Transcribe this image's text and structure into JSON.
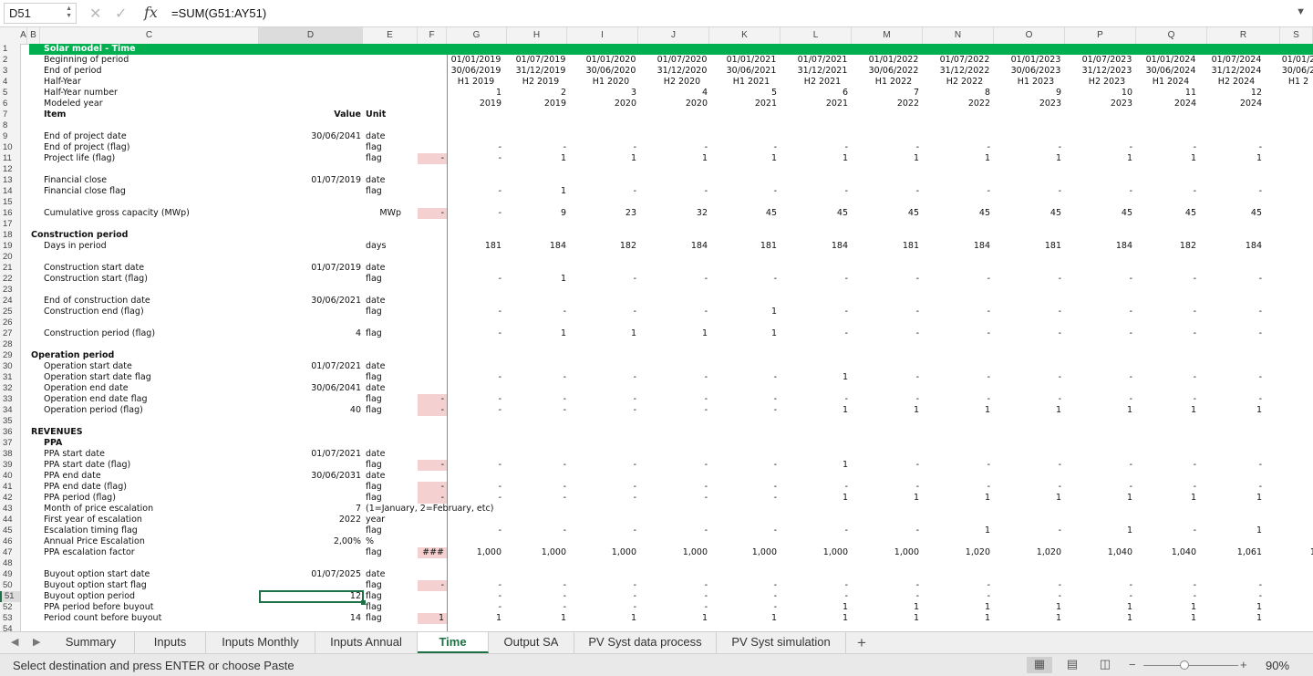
{
  "formula_bar": {
    "cell_ref": "D51",
    "formula": "=SUM(G51:AY51)",
    "fx_label": "fx",
    "cancel_icon": "close-icon",
    "accept_icon": "check-icon"
  },
  "columns": [
    {
      "letter": "A"
    },
    {
      "letter": "B"
    },
    {
      "letter": "C"
    },
    {
      "letter": "D"
    },
    {
      "letter": "E"
    },
    {
      "letter": "F"
    },
    {
      "letter": "G"
    },
    {
      "letter": "H"
    },
    {
      "letter": "I"
    },
    {
      "letter": "J"
    },
    {
      "letter": "K"
    },
    {
      "letter": "L"
    },
    {
      "letter": "M"
    },
    {
      "letter": "N"
    },
    {
      "letter": "O"
    },
    {
      "letter": "P"
    },
    {
      "letter": "Q"
    },
    {
      "letter": "R"
    },
    {
      "letter": "S"
    }
  ],
  "selected_column": "D",
  "selected_row": "51",
  "rows": [
    {
      "n": "1",
      "title": "Solar model - Time",
      "highlight_color": "#00b050"
    },
    {
      "n": "2",
      "label": "Beginning of period",
      "vals": [
        "01/01/2019",
        "01/07/2019",
        "01/01/2020",
        "01/07/2020",
        "01/01/2021",
        "01/07/2021",
        "01/01/2022",
        "01/07/2022",
        "01/01/2023",
        "01/07/2023",
        "01/01/2024",
        "01/07/2024",
        "01/01/2"
      ]
    },
    {
      "n": "3",
      "label": "End of period",
      "vals": [
        "30/06/2019",
        "31/12/2019",
        "30/06/2020",
        "31/12/2020",
        "30/06/2021",
        "31/12/2021",
        "30/06/2022",
        "31/12/2022",
        "30/06/2023",
        "31/12/2023",
        "30/06/2024",
        "31/12/2024",
        "30/06/2"
      ]
    },
    {
      "n": "4",
      "label": "Half-Year",
      "vals": [
        "H1 2019",
        "H2 2019",
        "H1 2020",
        "H2 2020",
        "H1 2021",
        "H2 2021",
        "H1 2022",
        "H2 2022",
        "H1 2023",
        "H2 2023",
        "H1 2024",
        "H2 2024",
        "H1 2"
      ]
    },
    {
      "n": "5",
      "label": "Half-Year number",
      "vals": [
        "1",
        "2",
        "3",
        "4",
        "5",
        "6",
        "7",
        "8",
        "9",
        "10",
        "11",
        "12",
        ""
      ]
    },
    {
      "n": "6",
      "label": "Modeled year",
      "vals": [
        "2019",
        "2019",
        "2020",
        "2020",
        "2021",
        "2021",
        "2022",
        "2022",
        "2023",
        "2023",
        "2024",
        "2024",
        "2"
      ]
    },
    {
      "n": "7",
      "label": "Item",
      "bold": true,
      "value": "Value",
      "unit": "Unit",
      "value_bold": true
    },
    {
      "n": "8"
    },
    {
      "n": "9",
      "label": "End of project date",
      "value": "30/06/2041",
      "unit": "date"
    },
    {
      "n": "10",
      "label": "End of project (flag)",
      "unit": "flag",
      "vals": [
        "-",
        "-",
        "-",
        "-",
        "-",
        "-",
        "-",
        "-",
        "-",
        "-",
        "-",
        "-",
        ""
      ]
    },
    {
      "n": "11",
      "label": "Project life (flag)",
      "unit": "flag",
      "check": "-",
      "vals": [
        "-",
        "1",
        "1",
        "1",
        "1",
        "1",
        "1",
        "1",
        "1",
        "1",
        "1",
        "1",
        ""
      ]
    },
    {
      "n": "12"
    },
    {
      "n": "13",
      "label": "Financial close",
      "value": "01/07/2019",
      "unit": "date"
    },
    {
      "n": "14",
      "label": "Financial close flag",
      "unit": "flag",
      "vals": [
        "-",
        "1",
        "-",
        "-",
        "-",
        "-",
        "-",
        "-",
        "-",
        "-",
        "-",
        "-",
        ""
      ]
    },
    {
      "n": "15"
    },
    {
      "n": "16",
      "label": "Cumulative gross capacity (MWp)",
      "unit_e": "MWp",
      "check": "-",
      "vals": [
        "-",
        "9",
        "23",
        "32",
        "45",
        "45",
        "45",
        "45",
        "45",
        "45",
        "45",
        "45",
        ""
      ]
    },
    {
      "n": "17"
    },
    {
      "n": "18",
      "section": "Construction period"
    },
    {
      "n": "19",
      "label": "Days in period",
      "unit": "days",
      "vals": [
        "181",
        "184",
        "182",
        "184",
        "181",
        "184",
        "181",
        "184",
        "181",
        "184",
        "182",
        "184",
        ""
      ]
    },
    {
      "n": "20"
    },
    {
      "n": "21",
      "label": "Construction start date",
      "value": "01/07/2019",
      "unit": "date"
    },
    {
      "n": "22",
      "label": "Construction start (flag)",
      "unit": "flag",
      "vals": [
        "-",
        "1",
        "-",
        "-",
        "-",
        "-",
        "-",
        "-",
        "-",
        "-",
        "-",
        "-",
        ""
      ]
    },
    {
      "n": "23"
    },
    {
      "n": "24",
      "label": "End of construction date",
      "value": "30/06/2021",
      "unit": "date"
    },
    {
      "n": "25",
      "label": "Construction end (flag)",
      "unit": "flag",
      "vals": [
        "-",
        "-",
        "-",
        "-",
        "1",
        "-",
        "-",
        "-",
        "-",
        "-",
        "-",
        "-",
        ""
      ]
    },
    {
      "n": "26"
    },
    {
      "n": "27",
      "label": "Construction period (flag)",
      "value": "4",
      "unit": "flag",
      "vals": [
        "-",
        "1",
        "1",
        "1",
        "1",
        "-",
        "-",
        "-",
        "-",
        "-",
        "-",
        "-",
        ""
      ]
    },
    {
      "n": "28"
    },
    {
      "n": "29",
      "section": "Operation period"
    },
    {
      "n": "30",
      "label": "Operation start date",
      "value": "01/07/2021",
      "unit": "date"
    },
    {
      "n": "31",
      "label": "Operation start date flag",
      "unit": "flag",
      "vals": [
        "-",
        "-",
        "-",
        "-",
        "-",
        "1",
        "-",
        "-",
        "-",
        "-",
        "-",
        "-",
        ""
      ]
    },
    {
      "n": "32",
      "label": "Operation end date",
      "value": "30/06/2041",
      "unit": "date"
    },
    {
      "n": "33",
      "label": "Operation end date flag",
      "unit": "flag",
      "check": "-",
      "vals": [
        "-",
        "-",
        "-",
        "-",
        "-",
        "-",
        "-",
        "-",
        "-",
        "-",
        "-",
        "-",
        ""
      ]
    },
    {
      "n": "34",
      "label": "Operation period (flag)",
      "value": "40",
      "unit": "flag",
      "check": "-",
      "vals": [
        "-",
        "-",
        "-",
        "-",
        "-",
        "1",
        "1",
        "1",
        "1",
        "1",
        "1",
        "1",
        ""
      ]
    },
    {
      "n": "35"
    },
    {
      "n": "36",
      "section": "REVENUES"
    },
    {
      "n": "37",
      "subsection": "PPA"
    },
    {
      "n": "38",
      "label": "PPA start date",
      "value": "01/07/2021",
      "unit": "date"
    },
    {
      "n": "39",
      "label": "PPA start date (flag)",
      "unit": "flag",
      "check": "-",
      "vals": [
        "-",
        "-",
        "-",
        "-",
        "-",
        "1",
        "-",
        "-",
        "-",
        "-",
        "-",
        "-",
        ""
      ]
    },
    {
      "n": "40",
      "label": "PPA end date",
      "value": "30/06/2031",
      "unit": "date"
    },
    {
      "n": "41",
      "label": "PPA end date (flag)",
      "unit": "flag",
      "check": "-",
      "vals": [
        "-",
        "-",
        "-",
        "-",
        "-",
        "-",
        "-",
        "-",
        "-",
        "-",
        "-",
        "-",
        ""
      ]
    },
    {
      "n": "42",
      "label": "PPA period (flag)",
      "unit": "flag",
      "check": "-",
      "vals": [
        "-",
        "-",
        "-",
        "-",
        "-",
        "1",
        "1",
        "1",
        "1",
        "1",
        "1",
        "1",
        ""
      ]
    },
    {
      "n": "43",
      "label": "Month of price escalation",
      "value": "7",
      "unit": "(1=January, 2=February, etc)"
    },
    {
      "n": "44",
      "label": "First year of escalation",
      "value": "2022",
      "unit": "year"
    },
    {
      "n": "45",
      "label": "Escalation timing flag",
      "unit": "flag",
      "vals": [
        "-",
        "-",
        "-",
        "-",
        "-",
        "-",
        "-",
        "1",
        "-",
        "1",
        "-",
        "1",
        ""
      ]
    },
    {
      "n": "46",
      "label": "Annual Price Escalation",
      "value": "2,00%",
      "unit": "%"
    },
    {
      "n": "47",
      "label": "PPA escalation factor",
      "unit": "flag",
      "check": "###",
      "vals": [
        "1,000",
        "1,000",
        "1,000",
        "1,000",
        "1,000",
        "1,000",
        "1,000",
        "1,020",
        "1,020",
        "1,040",
        "1,040",
        "1,061",
        "1,0"
      ]
    },
    {
      "n": "48"
    },
    {
      "n": "49",
      "label": "Buyout option start date",
      "value": "01/07/2025",
      "unit": "date"
    },
    {
      "n": "50",
      "label": "Buyout option start flag",
      "unit": "flag",
      "check": "-",
      "vals": [
        "-",
        "-",
        "-",
        "-",
        "-",
        "-",
        "-",
        "-",
        "-",
        "-",
        "-",
        "-",
        ""
      ]
    },
    {
      "n": "51",
      "label": "Buyout option period",
      "value": "12",
      "unit": "flag",
      "vals": [
        "-",
        "-",
        "-",
        "-",
        "-",
        "-",
        "-",
        "-",
        "-",
        "-",
        "-",
        "-",
        ""
      ]
    },
    {
      "n": "52",
      "label": "PPA period before buyout",
      "unit": "flag",
      "vals": [
        "-",
        "-",
        "-",
        "-",
        "-",
        "1",
        "1",
        "1",
        "1",
        "1",
        "1",
        "1",
        ""
      ]
    },
    {
      "n": "53",
      "label": "Period count before buyout",
      "value": "14",
      "unit": "flag",
      "check": "1",
      "vals": [
        "1",
        "1",
        "1",
        "1",
        "1",
        "1",
        "1",
        "1",
        "1",
        "1",
        "1",
        "1",
        ""
      ]
    },
    {
      "n": "54"
    }
  ],
  "sheet_tabs": [
    "Summary",
    "Inputs",
    "Inputs Monthly",
    "Inputs Annual",
    "Time",
    "Output SA",
    "PV Syst data process",
    "PV Syst simulation"
  ],
  "active_tab": "Time",
  "status": {
    "message": "Select destination and press ENTER or choose Paste",
    "zoom": "90%",
    "zoom_fraction": 0.43,
    "views": [
      "normal-view-icon",
      "page-layout-icon",
      "page-break-icon"
    ]
  },
  "colors": {
    "accent": "#1e7145",
    "title_fill": "#00b050",
    "check_fill": "#f4d0d0"
  }
}
